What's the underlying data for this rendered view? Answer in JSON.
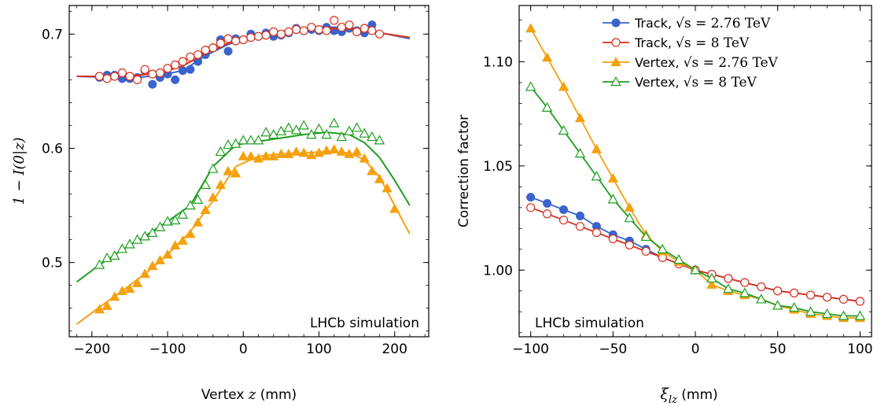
{
  "chart_data": [
    {
      "type": "scatter",
      "xlabel_prefix": "Vertex ",
      "xlabel_var": "z",
      "xlabel_unit": " (mm)",
      "ylabel": "1 − I(0|z)",
      "xlim": [
        -230,
        245
      ],
      "ylim": [
        0.435,
        0.725
      ],
      "xticks": [
        -200,
        -100,
        0,
        100,
        200
      ],
      "xtick_labels": [
        "−200",
        "−100",
        "0",
        "100",
        "200"
      ],
      "yticks": [
        0.5,
        0.6,
        0.7
      ],
      "ytick_labels": [
        "0.5",
        "0.6",
        "0.7"
      ],
      "annotation": "LHCb simulation",
      "annotation_position": "bottom-right",
      "series": [
        {
          "marker": "filled-circle",
          "color": "#3a63cc",
          "curve_color": "#3a63cc",
          "x": [
            -190,
            -180,
            -170,
            -160,
            -150,
            -140,
            -130,
            -120,
            -110,
            -100,
            -90,
            -80,
            -70,
            -60,
            -50,
            -40,
            -30,
            -20,
            -10,
            0,
            10,
            20,
            30,
            40,
            50,
            60,
            70,
            80,
            90,
            100,
            110,
            120,
            130,
            140,
            150,
            160,
            170
          ],
          "y": [
            0.662,
            0.664,
            0.664,
            0.661,
            0.661,
            0.662,
            0.668,
            0.656,
            0.662,
            0.665,
            0.66,
            0.668,
            0.669,
            0.676,
            0.682,
            0.688,
            0.695,
            0.685,
            0.696,
            0.695,
            0.7,
            0.698,
            0.701,
            0.698,
            0.699,
            0.701,
            0.705,
            0.703,
            0.704,
            0.703,
            0.706,
            0.703,
            0.702,
            0.705,
            0.703,
            0.701,
            0.708
          ],
          "curve_x": [
            -220,
            -170,
            -140,
            -110,
            -80,
            -50,
            -20,
            10,
            40,
            70,
            100,
            130,
            160,
            190,
            220
          ],
          "curve_y": [
            0.663,
            0.662,
            0.662,
            0.664,
            0.668,
            0.681,
            0.691,
            0.697,
            0.701,
            0.704,
            0.706,
            0.706,
            0.704,
            0.7,
            0.696
          ]
        },
        {
          "marker": "open-circle",
          "color": "#d9301c",
          "curve_color": "#d9301c",
          "x": [
            -190,
            -180,
            -170,
            -160,
            -150,
            -140,
            -130,
            -120,
            -110,
            -100,
            -90,
            -80,
            -70,
            -60,
            -50,
            -40,
            -30,
            -20,
            -10,
            0,
            10,
            20,
            30,
            40,
            50,
            60,
            70,
            80,
            90,
            100,
            110,
            120,
            130,
            140,
            150,
            160,
            170,
            180
          ],
          "y": [
            0.663,
            0.661,
            0.663,
            0.666,
            0.663,
            0.66,
            0.669,
            0.665,
            0.666,
            0.67,
            0.673,
            0.676,
            0.68,
            0.682,
            0.686,
            0.688,
            0.692,
            0.696,
            0.694,
            0.695,
            0.697,
            0.698,
            0.699,
            0.702,
            0.7,
            0.702,
            0.704,
            0.703,
            0.706,
            0.704,
            0.703,
            0.712,
            0.706,
            0.708,
            0.702,
            0.705,
            0.703,
            0.7
          ],
          "curve_x": [
            -220,
            -170,
            -140,
            -110,
            -80,
            -50,
            -20,
            10,
            40,
            70,
            100,
            130,
            160,
            190,
            220
          ],
          "curve_y": [
            0.663,
            0.663,
            0.664,
            0.666,
            0.672,
            0.683,
            0.692,
            0.697,
            0.701,
            0.703,
            0.705,
            0.705,
            0.703,
            0.7,
            0.697
          ]
        },
        {
          "marker": "filled-triangle",
          "color": "#f5a00f",
          "curve_color": "#f5a00f",
          "x": [
            -190,
            -180,
            -170,
            -160,
            -150,
            -140,
            -130,
            -120,
            -110,
            -100,
            -90,
            -80,
            -70,
            -60,
            -50,
            -40,
            -30,
            -20,
            -10,
            0,
            10,
            20,
            30,
            40,
            50,
            60,
            70,
            80,
            90,
            100,
            110,
            120,
            130,
            140,
            150,
            160,
            170,
            180,
            190,
            200
          ],
          "y": [
            0.459,
            0.462,
            0.47,
            0.475,
            0.477,
            0.482,
            0.49,
            0.497,
            0.502,
            0.507,
            0.515,
            0.519,
            0.525,
            0.535,
            0.546,
            0.557,
            0.568,
            0.58,
            0.578,
            0.593,
            0.593,
            0.591,
            0.593,
            0.593,
            0.595,
            0.595,
            0.597,
            0.596,
            0.594,
            0.596,
            0.598,
            0.599,
            0.597,
            0.595,
            0.597,
            0.591,
            0.58,
            0.573,
            0.565,
            0.547
          ],
          "curve_x": [
            -220,
            -190,
            -160,
            -130,
            -100,
            -70,
            -40,
            -10,
            20,
            50,
            80,
            110,
            140,
            160,
            180,
            200,
            220
          ],
          "curve_y": [
            0.446,
            0.461,
            0.475,
            0.49,
            0.507,
            0.527,
            0.554,
            0.584,
            0.593,
            0.595,
            0.596,
            0.597,
            0.596,
            0.59,
            0.575,
            0.55,
            0.525
          ]
        },
        {
          "marker": "open-triangle",
          "color": "#1f9e1f",
          "curve_color": "#1f9e1f",
          "x": [
            -190,
            -180,
            -170,
            -160,
            -150,
            -140,
            -130,
            -120,
            -110,
            -100,
            -90,
            -80,
            -70,
            -60,
            -50,
            -40,
            -30,
            -20,
            -10,
            0,
            10,
            20,
            30,
            40,
            50,
            60,
            70,
            80,
            90,
            100,
            110,
            120,
            130,
            140,
            150,
            160,
            170,
            180
          ],
          "y": [
            0.498,
            0.504,
            0.506,
            0.512,
            0.516,
            0.52,
            0.523,
            0.526,
            0.531,
            0.536,
            0.537,
            0.542,
            0.55,
            0.555,
            0.568,
            0.582,
            0.597,
            0.603,
            0.604,
            0.607,
            0.607,
            0.607,
            0.614,
            0.612,
            0.615,
            0.618,
            0.616,
            0.62,
            0.612,
            0.617,
            0.612,
            0.622,
            0.61,
            0.615,
            0.618,
            0.613,
            0.61,
            0.607
          ],
          "curve_x": [
            -220,
            -190,
            -160,
            -130,
            -100,
            -70,
            -40,
            -10,
            20,
            50,
            80,
            110,
            140,
            160,
            180,
            200,
            220
          ],
          "curve_y": [
            0.483,
            0.498,
            0.511,
            0.523,
            0.536,
            0.55,
            0.584,
            0.603,
            0.606,
            0.609,
            0.612,
            0.614,
            0.612,
            0.605,
            0.592,
            0.572,
            0.55
          ]
        }
      ]
    },
    {
      "type": "line",
      "xlabel_var": "ξ",
      "xlabel_sub": "lz",
      "xlabel_unit": " (mm)",
      "ylabel": "Correction factor",
      "xlim": [
        -107,
        107
      ],
      "ylim": [
        0.968,
        1.127
      ],
      "xticks": [
        -100,
        -50,
        0,
        50,
        100
      ],
      "xtick_labels": [
        "−100",
        "−50",
        "0",
        "50",
        "100"
      ],
      "yticks": [
        1.0,
        1.05,
        1.1
      ],
      "ytick_labels": [
        "1.00",
        "1.05",
        "1.10"
      ],
      "annotation": "LHCb simulation",
      "annotation_position": "bottom-left",
      "legend_position": "top-right",
      "x": [
        -100,
        -90,
        -80,
        -70,
        -60,
        -50,
        -40,
        -30,
        -20,
        -10,
        0,
        10,
        20,
        30,
        40,
        50,
        60,
        70,
        80,
        90,
        100
      ],
      "series": [
        {
          "name": "Track, ",
          "name_math": "√s = 2.76 TeV",
          "marker": "filled-circle",
          "color": "#3a63cc",
          "values": [
            1.035,
            1.032,
            1.029,
            1.026,
            1.021,
            1.017,
            1.014,
            1.01,
            1.006,
            1.003,
            1.0,
            0.998,
            0.996,
            0.994,
            0.992,
            0.99,
            0.989,
            0.988,
            0.987,
            0.986,
            0.985
          ]
        },
        {
          "name": "Track, ",
          "name_math": "√s = 8 TeV",
          "marker": "open-circle",
          "color": "#d9301c",
          "values": [
            1.03,
            1.027,
            1.024,
            1.021,
            1.018,
            1.015,
            1.012,
            1.009,
            1.006,
            1.003,
            1.0,
            0.998,
            0.996,
            0.994,
            0.992,
            0.99,
            0.989,
            0.988,
            0.987,
            0.986,
            0.985
          ]
        },
        {
          "name": "Vertex, ",
          "name_math": "√s = 2.76 TeV",
          "marker": "filled-triangle",
          "color": "#f5a00f",
          "values": [
            1.116,
            1.102,
            1.088,
            1.073,
            1.058,
            1.044,
            1.03,
            1.017,
            1.009,
            1.004,
            1.0,
            0.993,
            0.99,
            0.988,
            0.986,
            0.983,
            0.981,
            0.979,
            0.978,
            0.977,
            0.977
          ]
        },
        {
          "name": "Vertex, ",
          "name_math": "√s = 8 TeV",
          "marker": "open-triangle",
          "color": "#1f9e1f",
          "values": [
            1.088,
            1.078,
            1.067,
            1.056,
            1.045,
            1.034,
            1.025,
            1.016,
            1.01,
            1.005,
            1.0,
            0.996,
            0.991,
            0.989,
            0.986,
            0.983,
            0.982,
            0.98,
            0.979,
            0.978,
            0.978
          ]
        }
      ]
    }
  ]
}
